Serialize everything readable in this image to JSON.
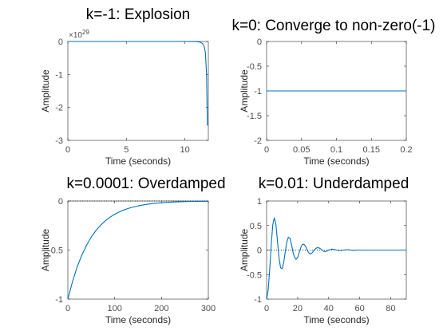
{
  "chart_data": [
    {
      "type": "line",
      "title": "k=-1: Explosion",
      "xlabel": "Time (seconds)",
      "ylabel": "Amplitude",
      "xlim": [
        0,
        12
      ],
      "ylim": [
        -3,
        0
      ],
      "x_ticks": [
        0,
        5,
        10
      ],
      "x_tick_labels": [
        "0",
        "5",
        "10"
      ],
      "y_ticks": [
        0,
        -1,
        -2,
        -3
      ],
      "y_tick_labels": [
        "0",
        "-1",
        "-2",
        "-3"
      ],
      "y_multiplier": "×10",
      "y_exponent": "29",
      "reference_line": null,
      "series": [
        {
          "color": "#0072bd",
          "x": [
            0,
            2,
            4,
            6,
            8,
            10,
            11,
            11.3,
            11.5,
            11.65,
            11.75,
            11.85,
            11.92
          ],
          "y": [
            0,
            0,
            0,
            0,
            0,
            0,
            -0.005,
            -0.02,
            -0.06,
            -0.15,
            -0.35,
            -1.0,
            -2.55
          ]
        }
      ]
    },
    {
      "type": "line",
      "title": "k=0: Converge to non-zero(-1)",
      "xlabel": "Time (seconds)",
      "ylabel": "Amplitude",
      "xlim": [
        0,
        0.2
      ],
      "ylim": [
        -2,
        0
      ],
      "x_ticks": [
        0,
        0.05,
        0.1,
        0.15,
        0.2
      ],
      "x_tick_labels": [
        "0",
        "0.05",
        "0.1",
        "0.15",
        "0.2"
      ],
      "y_ticks": [
        0,
        -0.5,
        -1,
        -1.5,
        -2
      ],
      "y_tick_labels": [
        "0",
        "-0.5",
        "-1",
        "-1.5",
        "-2"
      ],
      "reference_line": null,
      "series": [
        {
          "color": "#0072bd",
          "x": [
            0,
            0.2
          ],
          "y": [
            -1,
            -1
          ]
        }
      ]
    },
    {
      "type": "line",
      "title": "k=0.0001: Overdamped",
      "xlabel": "Time (seconds)",
      "ylabel": "Amplitude",
      "xlim": [
        0,
        300
      ],
      "ylim": [
        -1,
        0
      ],
      "x_ticks": [
        0,
        100,
        200,
        300
      ],
      "x_tick_labels": [
        "0",
        "100",
        "200",
        "300"
      ],
      "y_ticks": [
        0,
        -0.5,
        -1
      ],
      "y_tick_labels": [
        "0",
        "-0.5",
        "-1"
      ],
      "reference_line": 0,
      "series": [
        {
          "color": "#0072bd",
          "x": [
            0,
            10,
            20,
            30,
            40,
            50,
            60,
            70,
            80,
            90,
            100,
            110,
            120,
            130,
            140,
            150,
            160,
            170,
            180,
            190,
            200,
            220,
            240,
            260,
            280,
            300
          ],
          "y": [
            -1,
            -0.82,
            -0.67,
            -0.55,
            -0.45,
            -0.368,
            -0.301,
            -0.247,
            -0.202,
            -0.165,
            -0.135,
            -0.111,
            -0.091,
            -0.074,
            -0.061,
            -0.05,
            -0.041,
            -0.033,
            -0.027,
            -0.022,
            -0.018,
            -0.012,
            -0.008,
            -0.005,
            -0.004,
            -0.003
          ]
        }
      ]
    },
    {
      "type": "line",
      "title": "k=0.01: Underdamped",
      "xlabel": "Time (seconds)",
      "ylabel": "Amplitude",
      "xlim": [
        0,
        90
      ],
      "ylim": [
        -1,
        1
      ],
      "x_ticks": [
        0,
        20,
        40,
        60,
        80
      ],
      "x_tick_labels": [
        "0",
        "20",
        "40",
        "60",
        "80"
      ],
      "y_ticks": [
        1,
        0.5,
        0,
        -0.5,
        -1
      ],
      "y_tick_labels": [
        "1",
        "0.5",
        "0",
        "-0.5",
        "-1"
      ],
      "reference_line": 0,
      "series": [
        {
          "color": "#0072bd",
          "x": [
            0,
            1,
            2,
            3,
            4,
            5,
            6,
            7,
            8,
            9,
            10,
            11,
            12,
            13,
            14,
            15,
            16,
            17,
            18,
            19,
            20,
            21,
            22,
            23,
            24,
            25,
            26,
            27,
            28,
            29,
            30,
            31,
            32,
            33,
            34,
            35,
            36,
            37,
            38,
            39,
            40,
            42,
            44,
            46,
            48,
            50,
            52,
            54,
            56,
            58,
            60,
            62,
            64,
            66,
            68,
            70,
            72,
            74,
            76,
            78,
            80,
            82,
            84,
            86,
            88,
            90
          ],
          "y": [
            -1,
            -0.82,
            -0.4,
            0.12,
            0.52,
            0.66,
            0.52,
            0.18,
            -0.16,
            -0.36,
            -0.38,
            -0.26,
            -0.04,
            0.16,
            0.26,
            0.24,
            0.12,
            -0.04,
            -0.15,
            -0.19,
            -0.15,
            -0.05,
            0.05,
            0.11,
            0.12,
            0.08,
            0.01,
            -0.05,
            -0.08,
            -0.07,
            -0.03,
            0.01,
            0.04,
            0.05,
            0.04,
            0.02,
            -0.01,
            -0.03,
            -0.03,
            -0.02,
            0.0,
            0.02,
            0.01,
            -0.01,
            -0.01,
            0.0,
            0.01,
            0.0,
            -0.005,
            0.0,
            0.0,
            0.0,
            0.0,
            0.0,
            0.0,
            0.0,
            0.0,
            0.0,
            0.0,
            0.0,
            0.0,
            0.0,
            0.0,
            0.0,
            0.0,
            0.0
          ]
        }
      ]
    }
  ]
}
